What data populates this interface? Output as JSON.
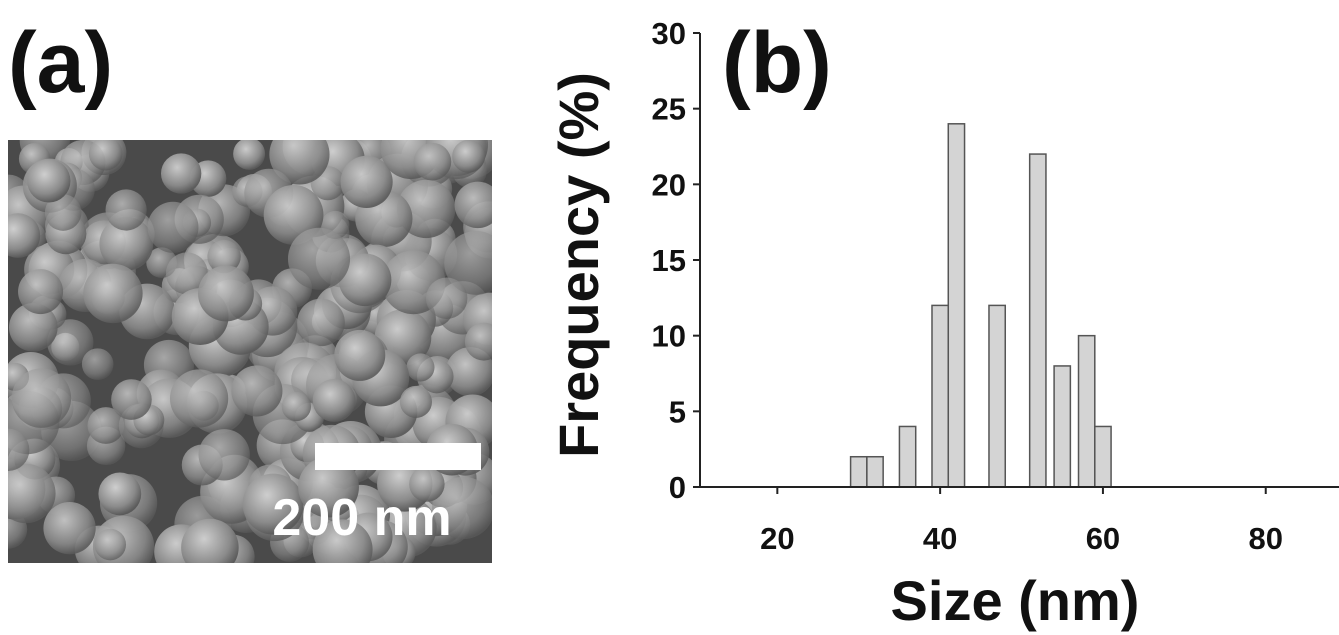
{
  "image_panel": {
    "label": "(a)",
    "scale_bar": "200 nm"
  },
  "chart_data": {
    "type": "bar",
    "panel_label": "(b)",
    "x_label": "Size (nm)",
    "y_label": "Frequency (%)",
    "x": [
      30,
      32,
      36,
      40,
      42,
      47,
      52,
      55,
      58,
      60
    ],
    "values": [
      2,
      2,
      4,
      12,
      24,
      12,
      22,
      8,
      10,
      4
    ],
    "color": "#d4d4d4",
    "xlim": [
      10.5,
      89
    ],
    "xticks": [
      20,
      40,
      60,
      80
    ],
    "ylim": [
      0,
      30
    ],
    "yticks": [
      0,
      5,
      10,
      15,
      20,
      25,
      30
    ],
    "grid": false
  }
}
